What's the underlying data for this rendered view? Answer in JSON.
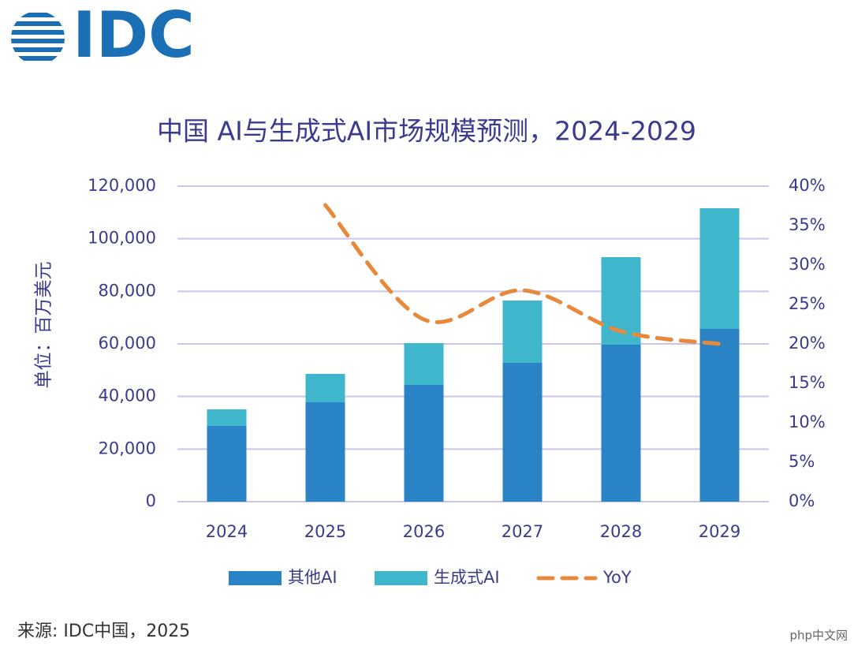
{
  "logo": "IDC",
  "chart_data": {
    "type": "bar",
    "title": "中国 AI与生成式AI市场规模预测，2024-2029",
    "ylabel": "单位：百万美元",
    "categories": [
      "2024",
      "2025",
      "2026",
      "2027",
      "2028",
      "2029"
    ],
    "series": [
      {
        "name": "其他AI",
        "color": "#2a83c4",
        "values": [
          28800,
          37800,
          44400,
          52800,
          59700,
          65700
        ]
      },
      {
        "name": "生成式AI",
        "color": "#3fb6cc",
        "values": [
          6300,
          10800,
          15900,
          23700,
          33300,
          45900
        ]
      },
      {
        "name": "YoY",
        "color": "#e8883a",
        "type": "line",
        "axis": "y2",
        "values": [
          null,
          37.6,
          23.1,
          26.8,
          21.6,
          20.0
        ]
      }
    ],
    "stacked": true,
    "ylim": [
      0,
      120000
    ],
    "yticks": [
      0,
      {
        "value": 20000,
        "label": "20,000"
      },
      {
        "value": 40000,
        "label": "40,000"
      },
      {
        "value": 60000,
        "label": "60,000"
      },
      {
        "value": 80000,
        "label": "80,000"
      },
      {
        "value": 100000,
        "label": "100,000"
      },
      {
        "value": 120000,
        "label": "120,000"
      }
    ],
    "y2lim": [
      0,
      40
    ],
    "y2ticks": [
      {
        "value": 0,
        "label": "0%"
      },
      {
        "value": 5,
        "label": "5%"
      },
      {
        "value": 10,
        "label": "10%"
      },
      {
        "value": 15,
        "label": "15%"
      },
      {
        "value": 20,
        "label": "20%"
      },
      {
        "value": 25,
        "label": "25%"
      },
      {
        "value": 30,
        "label": "30%"
      },
      {
        "value": 35,
        "label": "35%"
      },
      {
        "value": 40,
        "label": "40%"
      }
    ],
    "grid": true,
    "legend": "bottom"
  },
  "source": "来源: IDC中国，2025",
  "watermark": "php中文网"
}
